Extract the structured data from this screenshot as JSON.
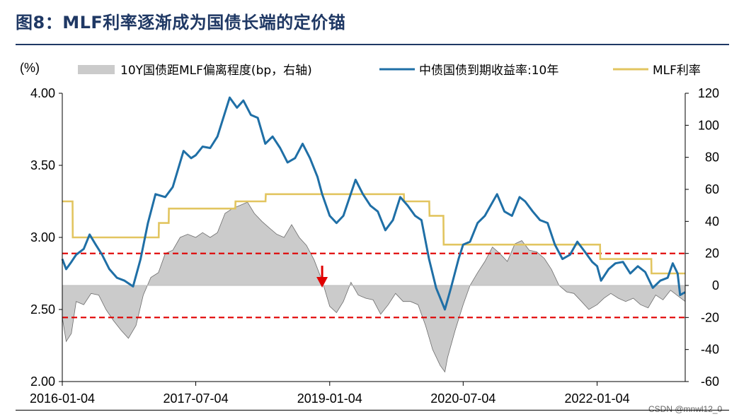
{
  "title": "图8：MLF利率逐渐成为国债长端的定价锚",
  "watermark": "CSDN @mnwl12_0",
  "chart_data": {
    "type": "line",
    "left_axis_unit": "(%)",
    "x_tick_labels": [
      "2016-01-04",
      "2017-07-04",
      "2019-01-04",
      "2020-07-04",
      "2022-01-04"
    ],
    "x_range": [
      "2016-01-04",
      "2022-12-31"
    ],
    "ylim_left": [
      2.0,
      4.0
    ],
    "ylim_right": [
      -60,
      120
    ],
    "left_ticks": [
      "2.00",
      "2.50",
      "3.00",
      "3.50",
      "4.00"
    ],
    "right_ticks": [
      "-60",
      "-40",
      "-20",
      "0",
      "20",
      "40",
      "60",
      "80",
      "100",
      "120"
    ],
    "colors": {
      "treasury": "#1f6fa6",
      "mlf": "#e2c560",
      "spread_fill": "#cbcbcb",
      "spread_stroke": "#6d6d6d",
      "threshold": "#e00000",
      "arrow": "#e00000",
      "title": "#1f3864"
    },
    "thresholds_bp": [
      20,
      -20
    ],
    "arrow_date": "2018-12-04",
    "series": [
      {
        "name": "10Y国债距MLF偏离程度(bp，右轴)",
        "axis": "right",
        "kind": "area",
        "points": [
          [
            "2016-01-04",
            -20
          ],
          [
            "2016-01-20",
            -35
          ],
          [
            "2016-02-10",
            -30
          ],
          [
            "2016-03-01",
            -10
          ],
          [
            "2016-04-01",
            -12
          ],
          [
            "2016-05-01",
            -5
          ],
          [
            "2016-06-01",
            -6
          ],
          [
            "2016-07-01",
            -15
          ],
          [
            "2016-08-01",
            -22
          ],
          [
            "2016-09-01",
            -28
          ],
          [
            "2016-10-01",
            -33
          ],
          [
            "2016-11-01",
            -25
          ],
          [
            "2016-12-01",
            -6
          ],
          [
            "2017-01-01",
            5
          ],
          [
            "2017-02-01",
            8
          ],
          [
            "2017-03-01",
            20
          ],
          [
            "2017-04-01",
            22
          ],
          [
            "2017-05-01",
            30
          ],
          [
            "2017-06-01",
            32
          ],
          [
            "2017-07-04",
            30
          ],
          [
            "2017-08-01",
            33
          ],
          [
            "2017-09-01",
            30
          ],
          [
            "2017-10-01",
            33
          ],
          [
            "2017-11-01",
            45
          ],
          [
            "2017-12-01",
            48
          ],
          [
            "2018-01-01",
            50
          ],
          [
            "2018-02-01",
            52
          ],
          [
            "2018-03-01",
            45
          ],
          [
            "2018-04-01",
            40
          ],
          [
            "2018-05-01",
            36
          ],
          [
            "2018-06-01",
            32
          ],
          [
            "2018-07-01",
            30
          ],
          [
            "2018-08-01",
            38
          ],
          [
            "2018-09-01",
            30
          ],
          [
            "2018-10-01",
            25
          ],
          [
            "2018-11-01",
            16
          ],
          [
            "2018-12-04",
            3
          ],
          [
            "2019-01-04",
            -13
          ],
          [
            "2019-02-01",
            -17
          ],
          [
            "2019-03-01",
            -10
          ],
          [
            "2019-04-01",
            2
          ],
          [
            "2019-05-01",
            -6
          ],
          [
            "2019-06-01",
            -8
          ],
          [
            "2019-07-01",
            -9
          ],
          [
            "2019-08-01",
            -18
          ],
          [
            "2019-09-01",
            -12
          ],
          [
            "2019-10-01",
            -5
          ],
          [
            "2019-11-01",
            -10
          ],
          [
            "2019-12-01",
            -10
          ],
          [
            "2020-01-01",
            -12
          ],
          [
            "2020-02-01",
            -25
          ],
          [
            "2020-03-01",
            -40
          ],
          [
            "2020-04-01",
            -50
          ],
          [
            "2020-04-20",
            -54
          ],
          [
            "2020-05-01",
            -45
          ],
          [
            "2020-06-01",
            -28
          ],
          [
            "2020-07-04",
            -12
          ],
          [
            "2020-08-01",
            0
          ],
          [
            "2020-09-01",
            8
          ],
          [
            "2020-10-01",
            15
          ],
          [
            "2020-11-01",
            24
          ],
          [
            "2020-12-01",
            20
          ],
          [
            "2021-01-01",
            15
          ],
          [
            "2021-02-01",
            26
          ],
          [
            "2021-03-01",
            28
          ],
          [
            "2021-04-01",
            22
          ],
          [
            "2021-05-01",
            21
          ],
          [
            "2021-06-01",
            17
          ],
          [
            "2021-07-01",
            10
          ],
          [
            "2021-08-01",
            0
          ],
          [
            "2021-09-01",
            -4
          ],
          [
            "2021-10-01",
            -5
          ],
          [
            "2021-11-01",
            -10
          ],
          [
            "2021-12-01",
            -15
          ],
          [
            "2022-01-04",
            -12
          ],
          [
            "2022-02-01",
            -8
          ],
          [
            "2022-03-01",
            -5
          ],
          [
            "2022-04-01",
            -8
          ],
          [
            "2022-05-01",
            -10
          ],
          [
            "2022-06-01",
            -8
          ],
          [
            "2022-07-01",
            -12
          ],
          [
            "2022-08-01",
            -14
          ],
          [
            "2022-09-01",
            -6
          ],
          [
            "2022-10-01",
            -9
          ],
          [
            "2022-11-01",
            -3
          ],
          [
            "2022-12-31",
            -10
          ]
        ]
      },
      {
        "name": "中债国债到期收益率:10年",
        "axis": "left",
        "kind": "line",
        "points": [
          [
            "2016-01-04",
            2.85
          ],
          [
            "2016-01-20",
            2.78
          ],
          [
            "2016-02-10",
            2.83
          ],
          [
            "2016-03-01",
            2.88
          ],
          [
            "2016-04-01",
            2.92
          ],
          [
            "2016-04-25",
            3.02
          ],
          [
            "2016-05-20",
            2.95
          ],
          [
            "2016-06-15",
            2.88
          ],
          [
            "2016-07-15",
            2.78
          ],
          [
            "2016-08-15",
            2.72
          ],
          [
            "2016-09-15",
            2.7
          ],
          [
            "2016-10-20",
            2.66
          ],
          [
            "2016-11-20",
            2.85
          ],
          [
            "2016-12-20",
            3.1
          ],
          [
            "2017-01-20",
            3.3
          ],
          [
            "2017-03-01",
            3.28
          ],
          [
            "2017-04-01",
            3.35
          ],
          [
            "2017-05-15",
            3.6
          ],
          [
            "2017-06-15",
            3.55
          ],
          [
            "2017-07-04",
            3.57
          ],
          [
            "2017-08-01",
            3.63
          ],
          [
            "2017-09-01",
            3.62
          ],
          [
            "2017-10-01",
            3.7
          ],
          [
            "2017-11-20",
            3.97
          ],
          [
            "2017-12-20",
            3.9
          ],
          [
            "2018-01-15",
            3.95
          ],
          [
            "2018-02-15",
            3.85
          ],
          [
            "2018-03-15",
            3.83
          ],
          [
            "2018-04-15",
            3.65
          ],
          [
            "2018-05-15",
            3.7
          ],
          [
            "2018-06-15",
            3.62
          ],
          [
            "2018-07-15",
            3.52
          ],
          [
            "2018-08-15",
            3.55
          ],
          [
            "2018-09-15",
            3.65
          ],
          [
            "2018-10-15",
            3.55
          ],
          [
            "2018-11-15",
            3.42
          ],
          [
            "2018-12-04",
            3.3
          ],
          [
            "2019-01-04",
            3.15
          ],
          [
            "2019-02-01",
            3.1
          ],
          [
            "2019-03-01",
            3.15
          ],
          [
            "2019-04-20",
            3.4
          ],
          [
            "2019-05-20",
            3.3
          ],
          [
            "2019-06-20",
            3.22
          ],
          [
            "2019-07-20",
            3.18
          ],
          [
            "2019-08-20",
            3.05
          ],
          [
            "2019-09-20",
            3.12
          ],
          [
            "2019-10-20",
            3.28
          ],
          [
            "2019-11-20",
            3.22
          ],
          [
            "2019-12-20",
            3.15
          ],
          [
            "2020-01-15",
            3.12
          ],
          [
            "2020-02-15",
            2.85
          ],
          [
            "2020-03-15",
            2.65
          ],
          [
            "2020-04-20",
            2.5
          ],
          [
            "2020-05-15",
            2.65
          ],
          [
            "2020-06-15",
            2.85
          ],
          [
            "2020-07-04",
            2.95
          ],
          [
            "2020-08-01",
            2.97
          ],
          [
            "2020-09-01",
            3.1
          ],
          [
            "2020-10-01",
            3.15
          ],
          [
            "2020-11-20",
            3.3
          ],
          [
            "2020-12-20",
            3.18
          ],
          [
            "2021-01-20",
            3.15
          ],
          [
            "2021-02-20",
            3.28
          ],
          [
            "2021-03-15",
            3.25
          ],
          [
            "2021-04-15",
            3.18
          ],
          [
            "2021-05-15",
            3.12
          ],
          [
            "2021-06-15",
            3.1
          ],
          [
            "2021-07-15",
            2.95
          ],
          [
            "2021-08-15",
            2.85
          ],
          [
            "2021-09-15",
            2.88
          ],
          [
            "2021-10-15",
            2.97
          ],
          [
            "2021-11-15",
            2.9
          ],
          [
            "2021-12-15",
            2.83
          ],
          [
            "2022-01-04",
            2.8
          ],
          [
            "2022-01-20",
            2.7
          ],
          [
            "2022-02-20",
            2.78
          ],
          [
            "2022-03-20",
            2.82
          ],
          [
            "2022-04-20",
            2.83
          ],
          [
            "2022-05-20",
            2.75
          ],
          [
            "2022-06-20",
            2.8
          ],
          [
            "2022-07-20",
            2.76
          ],
          [
            "2022-08-20",
            2.65
          ],
          [
            "2022-09-20",
            2.7
          ],
          [
            "2022-10-20",
            2.72
          ],
          [
            "2022-11-10",
            2.82
          ],
          [
            "2022-11-30",
            2.75
          ],
          [
            "2022-12-10",
            2.6
          ],
          [
            "2022-12-31",
            2.62
          ]
        ]
      },
      {
        "name": "MLF利率",
        "axis": "left",
        "kind": "step",
        "points": [
          [
            "2016-01-04",
            3.25
          ],
          [
            "2016-02-15",
            3.25
          ],
          [
            "2016-02-16",
            3.0
          ],
          [
            "2017-02-02",
            3.0
          ],
          [
            "2017-02-03",
            3.1
          ],
          [
            "2017-03-15",
            3.1
          ],
          [
            "2017-03-16",
            3.2
          ],
          [
            "2017-12-13",
            3.2
          ],
          [
            "2017-12-14",
            3.25
          ],
          [
            "2018-04-16",
            3.25
          ],
          [
            "2018-04-17",
            3.3
          ],
          [
            "2019-11-04",
            3.3
          ],
          [
            "2019-11-05",
            3.25
          ],
          [
            "2020-02-16",
            3.25
          ],
          [
            "2020-02-17",
            3.15
          ],
          [
            "2020-04-14",
            3.15
          ],
          [
            "2020-04-15",
            2.95
          ],
          [
            "2022-01-16",
            2.95
          ],
          [
            "2022-01-17",
            2.85
          ],
          [
            "2022-08-14",
            2.85
          ],
          [
            "2022-08-15",
            2.75
          ],
          [
            "2022-12-31",
            2.75
          ]
        ]
      }
    ]
  }
}
